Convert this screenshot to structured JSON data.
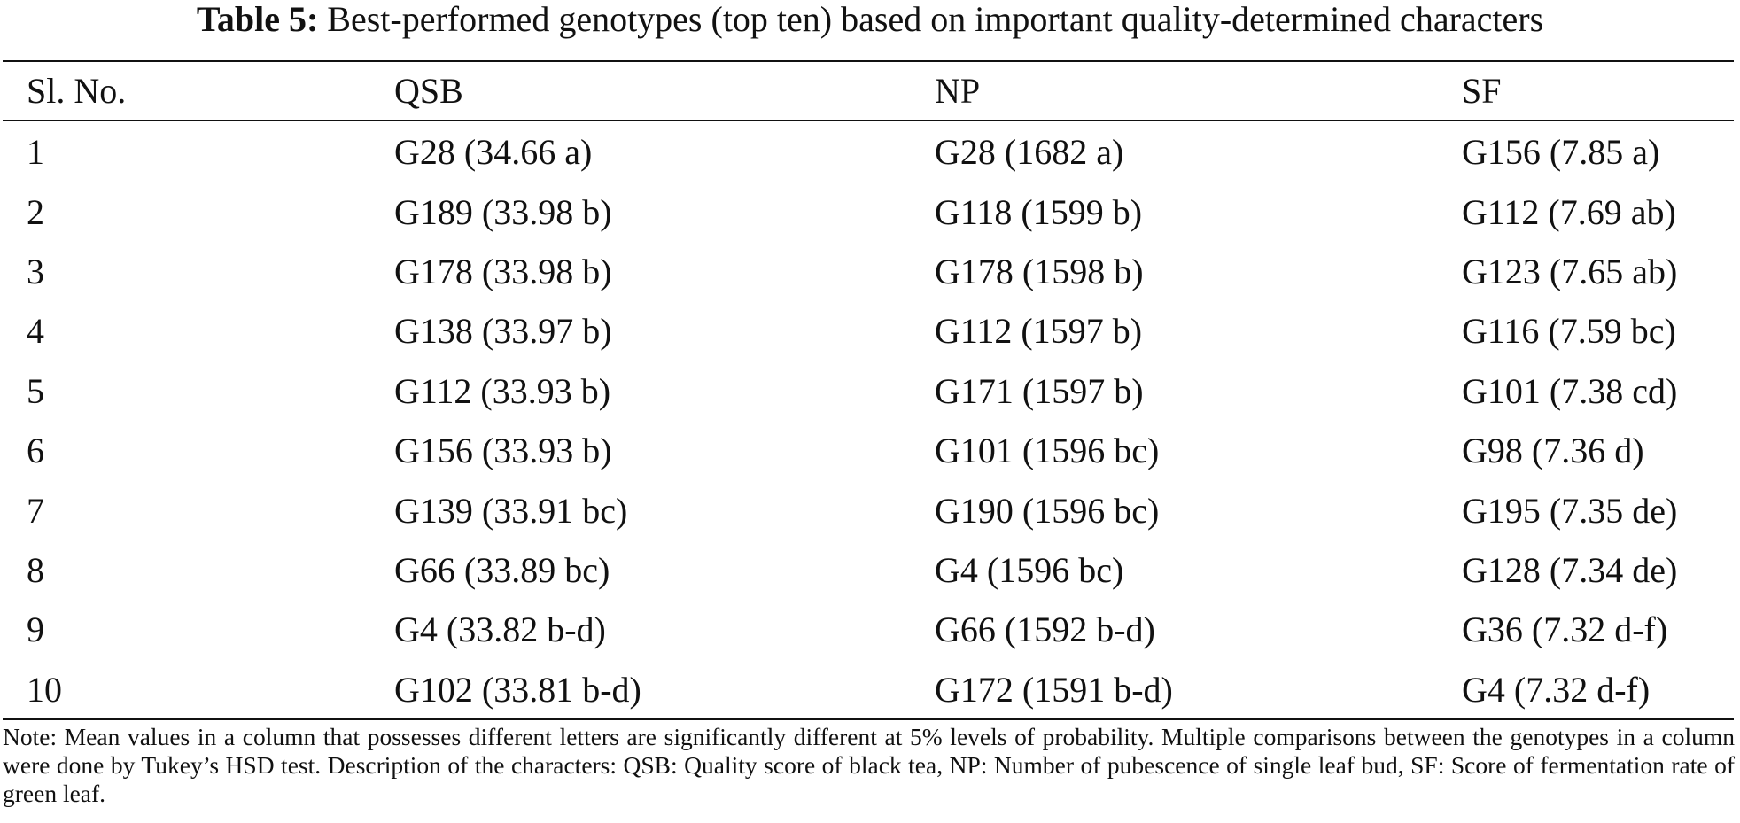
{
  "caption": {
    "label": "Table 5:",
    "text": "Best-performed genotypes (top ten) based on important quality-determined characters"
  },
  "table": {
    "headers": [
      "Sl. No.",
      "QSB",
      "NP",
      "SF"
    ],
    "rows": [
      [
        "1",
        "G28 (34.66 a)",
        "G28 (1682 a)",
        "G156 (7.85 a)"
      ],
      [
        "2",
        "G189 (33.98 b)",
        "G118 (1599 b)",
        "G112 (7.69 ab)"
      ],
      [
        "3",
        "G178 (33.98 b)",
        "G178 (1598 b)",
        "G123 (7.65 ab)"
      ],
      [
        "4",
        "G138 (33.97 b)",
        "G112 (1597 b)",
        "G116 (7.59 bc)"
      ],
      [
        "5",
        "G112 (33.93 b)",
        "G171 (1597 b)",
        "G101 (7.38 cd)"
      ],
      [
        "6",
        "G156 (33.93 b)",
        "G101 (1596 bc)",
        "G98 (7.36 d)"
      ],
      [
        "7",
        "G139 (33.91 bc)",
        "G190 (1596 bc)",
        "G195 (7.35 de)"
      ],
      [
        "8",
        "G66 (33.89 bc)",
        "G4 (1596 bc)",
        "G128 (7.34 de)"
      ],
      [
        "9",
        "G4 (33.82 b-d)",
        "G66 (1592 b-d)",
        "G36 (7.32 d-f)"
      ],
      [
        "10",
        "G102 (33.81 b-d)",
        "G172 (1591 b-d)",
        "G4 (7.32 d-f)"
      ]
    ]
  },
  "note": "Note: Mean values in a column that possesses different letters are significantly different at 5% levels of probability. Multiple comparisons between the genotypes in a column were done by Tukey’s HSD test. Description of the characters: QSB: Quality score of black tea, NP: Number of pubescence of single leaf bud, SF: Score of fermentation rate of green leaf."
}
